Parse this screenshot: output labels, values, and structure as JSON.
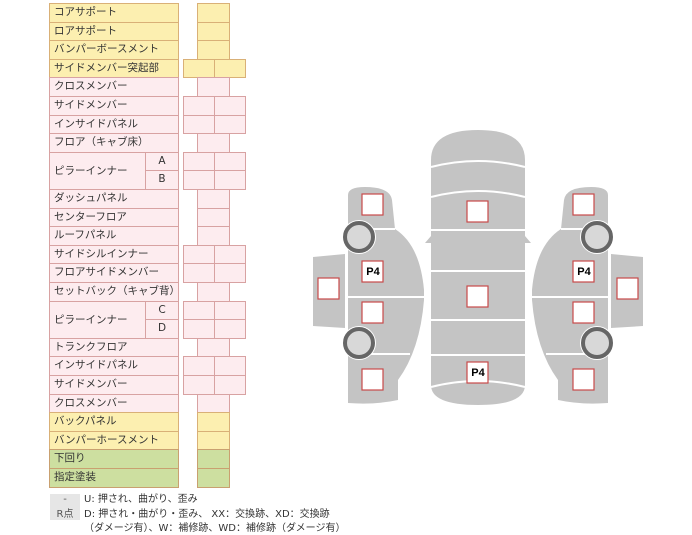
{
  "rows": [
    {
      "label": "コアサポート",
      "type": "single",
      "color": "yellow"
    },
    {
      "label": "ロアサポート",
      "type": "single",
      "color": "yellow"
    },
    {
      "label": "バンパーボースメント",
      "type": "single",
      "color": "yellow"
    },
    {
      "label": "サイドメンバー突起部",
      "type": "double",
      "color": "yellow"
    },
    {
      "label": "クロスメンバー",
      "type": "single",
      "color": "pink"
    },
    {
      "label": "サイドメンバー",
      "type": "double",
      "color": "pink"
    },
    {
      "label": "インサイドパネル",
      "type": "double",
      "color": "pink"
    },
    {
      "label": "フロア（キャブ床）",
      "type": "single",
      "color": "pink"
    },
    {
      "label": "ピラーインナー",
      "sub": "A",
      "type": "double",
      "color": "pink",
      "span": 2
    },
    {
      "label": "",
      "sub": "B",
      "type": "double",
      "color": "pink"
    },
    {
      "label": "ダッシュパネル",
      "type": "single",
      "color": "pink"
    },
    {
      "label": "センターフロア",
      "type": "single",
      "color": "pink"
    },
    {
      "label": "ルーフパネル",
      "type": "single",
      "color": "pink"
    },
    {
      "label": "サイドシルインナー",
      "type": "double",
      "color": "pink"
    },
    {
      "label": "フロアサイドメンバー",
      "type": "double",
      "color": "pink"
    },
    {
      "label": "セットバック（キャブ背）",
      "type": "single",
      "color": "pink"
    },
    {
      "label": "ピラーインナー",
      "sub": "C",
      "type": "double",
      "color": "pink",
      "span": 2
    },
    {
      "label": "",
      "sub": "D",
      "type": "double",
      "color": "pink"
    },
    {
      "label": "トランクフロア",
      "type": "single",
      "color": "pink"
    },
    {
      "label": "インサイドパネル",
      "type": "double",
      "color": "pink"
    },
    {
      "label": "サイドメンバー",
      "type": "double",
      "color": "pink"
    },
    {
      "label": "クロスメンバー",
      "type": "single",
      "color": "pink"
    },
    {
      "label": "バックパネル",
      "type": "single",
      "color": "yellow"
    },
    {
      "label": "バンパーホースメント",
      "type": "single",
      "color": "yellow"
    },
    {
      "label": "下回り",
      "type": "single",
      "color": "green"
    },
    {
      "label": "指定塗装",
      "type": "single",
      "color": "green"
    }
  ],
  "legend": [
    {
      "key": "-",
      "text": "U: 押され、曲がり、歪み"
    },
    {
      "key": "R点",
      "text": "D: 押され・曲がり・歪み、 XX：交換跡、XD：交換跡"
    },
    {
      "key": "",
      "text": "（ダメージ有）、W：補修跡、WD：補修跡（ダメージ有）"
    }
  ],
  "diagram": {
    "marks": {
      "left_p4": "P4",
      "right_p4": "P4",
      "center_p4": "P4"
    },
    "colors": {
      "body": "#c4c4c4",
      "box_border": "#c84a4a",
      "wheel": "#666666",
      "wheel_hub": "#d8d8d8"
    }
  }
}
